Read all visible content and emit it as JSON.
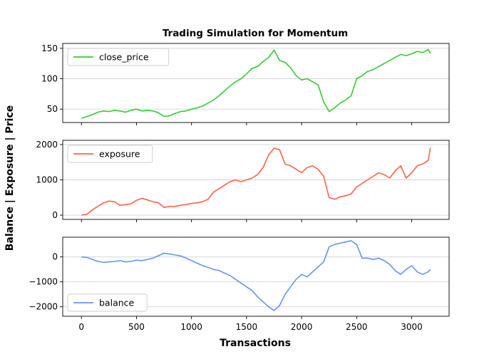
{
  "figure": {
    "title": "Trading Simulation for Momentum",
    "xlabel": "Transactions",
    "ylabel": "Balance | Exposure | Price"
  },
  "chart_data": [
    {
      "type": "line",
      "series": [
        {
          "name": "close_price",
          "color": "#33cc33",
          "x": [
            0,
            50,
            100,
            150,
            200,
            250,
            300,
            350,
            400,
            450,
            500,
            550,
            600,
            650,
            700,
            750,
            800,
            850,
            900,
            950,
            1000,
            1050,
            1100,
            1150,
            1200,
            1250,
            1300,
            1350,
            1400,
            1450,
            1500,
            1550,
            1600,
            1650,
            1700,
            1750,
            1800,
            1850,
            1900,
            1950,
            2000,
            2050,
            2100,
            2150,
            2200,
            2250,
            2300,
            2350,
            2400,
            2450,
            2500,
            2550,
            2600,
            2650,
            2700,
            2750,
            2800,
            2850,
            2900,
            2950,
            3000,
            3050,
            3100,
            3150,
            3170
          ],
          "y": [
            35,
            38,
            41,
            45,
            47,
            46,
            48,
            47,
            45,
            48,
            50,
            47,
            48,
            47,
            44,
            38,
            39,
            43,
            46,
            47,
            50,
            52,
            55,
            60,
            65,
            72,
            80,
            88,
            95,
            100,
            108,
            117,
            120,
            128,
            135,
            147,
            130,
            127,
            118,
            105,
            98,
            100,
            95,
            90,
            62,
            46,
            52,
            60,
            65,
            72,
            100,
            105,
            112,
            115,
            120,
            125,
            130,
            135,
            140,
            138,
            141,
            145,
            143,
            148,
            142
          ]
        }
      ],
      "yticks": [
        50,
        100,
        150
      ],
      "ylim": [
        28,
        158
      ],
      "grid": "y",
      "legend": "upper-left"
    },
    {
      "type": "line",
      "series": [
        {
          "name": "exposure",
          "color": "#ff6347",
          "x": [
            0,
            50,
            100,
            150,
            200,
            250,
            300,
            350,
            400,
            450,
            500,
            550,
            600,
            650,
            700,
            750,
            800,
            850,
            900,
            950,
            1000,
            1050,
            1100,
            1150,
            1200,
            1250,
            1300,
            1350,
            1400,
            1450,
            1500,
            1550,
            1600,
            1650,
            1700,
            1750,
            1800,
            1850,
            1900,
            1950,
            2000,
            2050,
            2100,
            2150,
            2200,
            2250,
            2300,
            2350,
            2400,
            2450,
            2500,
            2550,
            2600,
            2650,
            2700,
            2750,
            2800,
            2850,
            2900,
            2950,
            3000,
            3050,
            3100,
            3150,
            3170
          ],
          "y": [
            0,
            30,
            150,
            250,
            350,
            400,
            380,
            280,
            300,
            320,
            420,
            480,
            430,
            380,
            350,
            220,
            250,
            250,
            280,
            300,
            330,
            350,
            380,
            450,
            650,
            750,
            850,
            950,
            1000,
            950,
            1000,
            1050,
            1150,
            1350,
            1700,
            1900,
            1850,
            1450,
            1400,
            1300,
            1200,
            1350,
            1400,
            1300,
            1100,
            500,
            450,
            520,
            550,
            600,
            800,
            900,
            1000,
            1100,
            1200,
            1150,
            1050,
            1250,
            1400,
            1050,
            1200,
            1400,
            1450,
            1550,
            1900
          ]
        }
      ],
      "yticks": [
        0,
        1000,
        2000
      ],
      "ylim": [
        -120,
        2120
      ],
      "grid": "y",
      "legend": "upper-left"
    },
    {
      "type": "line",
      "series": [
        {
          "name": "balance",
          "color": "#6495ed",
          "x": [
            0,
            50,
            100,
            150,
            200,
            250,
            300,
            350,
            400,
            450,
            500,
            550,
            600,
            650,
            700,
            750,
            800,
            850,
            900,
            950,
            1000,
            1050,
            1100,
            1150,
            1200,
            1250,
            1300,
            1350,
            1400,
            1450,
            1500,
            1550,
            1600,
            1650,
            1700,
            1750,
            1800,
            1850,
            1900,
            1950,
            2000,
            2050,
            2100,
            2150,
            2200,
            2250,
            2300,
            2350,
            2400,
            2450,
            2500,
            2550,
            2600,
            2650,
            2700,
            2750,
            2800,
            2850,
            2900,
            2950,
            3000,
            3050,
            3100,
            3150,
            3170
          ],
          "y": [
            0,
            -20,
            -100,
            -180,
            -220,
            -200,
            -180,
            -150,
            -200,
            -180,
            -130,
            -150,
            -100,
            -50,
            50,
            150,
            120,
            80,
            40,
            -50,
            -150,
            -250,
            -350,
            -420,
            -500,
            -550,
            -650,
            -750,
            -900,
            -1050,
            -1200,
            -1350,
            -1600,
            -1800,
            -2000,
            -2150,
            -1950,
            -1500,
            -1200,
            -900,
            -700,
            -800,
            -600,
            -400,
            -200,
            400,
            500,
            550,
            600,
            650,
            500,
            -50,
            -50,
            -100,
            -50,
            -150,
            -300,
            -550,
            -700,
            -500,
            -350,
            -600,
            -700,
            -600,
            -500
          ]
        }
      ],
      "yticks": [
        0,
        -1000,
        -2000
      ],
      "ylim": [
        -2380,
        790
      ],
      "grid": "y",
      "legend": "lower-left"
    }
  ],
  "xaxis": {
    "ticks": [
      0,
      500,
      1000,
      1500,
      2000,
      2500,
      3000
    ],
    "xlim": [
      -170,
      3340
    ]
  }
}
